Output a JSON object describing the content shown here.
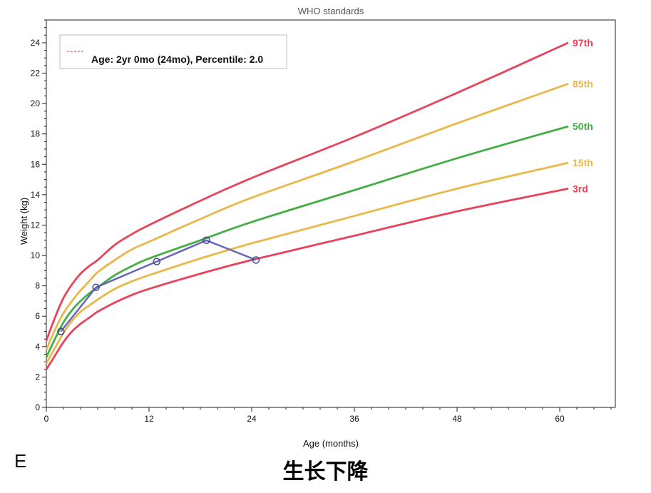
{
  "panel_letter": "E",
  "caption": "生长下降",
  "chart_data": {
    "type": "line",
    "title": "WHO standards",
    "xlabel": "Age (months)",
    "ylabel": "Weight (kg)",
    "xlim": [
      0,
      66.5
    ],
    "ylim": [
      0,
      25.5
    ],
    "x_ticks": [
      0,
      12,
      24,
      36,
      48,
      60
    ],
    "y_ticks": [
      0,
      2,
      4,
      6,
      8,
      10,
      12,
      14,
      16,
      18,
      20,
      22,
      24
    ],
    "x_minor_step": 2,
    "y_minor_step": 0.5,
    "legend": {
      "position": "top-left",
      "text": "Age: 2yr 0mo (24mo), Percentile: 2.0",
      "color": "#e03050"
    },
    "crosshair": {
      "x": 24.5,
      "y": 9.7,
      "color": "#e03050"
    },
    "series": [
      {
        "name": "97th",
        "color": "#e8435a",
        "x": [
          0,
          1,
          2,
          3,
          4,
          5,
          6,
          8,
          10,
          12,
          18,
          24,
          36,
          48,
          61
        ],
        "y": [
          4.4,
          5.9,
          7.2,
          8.1,
          8.8,
          9.3,
          9.7,
          10.7,
          11.4,
          12.0,
          13.6,
          15.1,
          17.8,
          20.7,
          24.0
        ]
      },
      {
        "name": "85th",
        "color": "#e8b84a",
        "x": [
          0,
          1,
          2,
          3,
          4,
          5,
          6,
          8,
          10,
          12,
          18,
          24,
          36,
          48,
          61
        ],
        "y": [
          3.8,
          5.1,
          6.2,
          7.0,
          7.7,
          8.3,
          8.9,
          9.7,
          10.4,
          10.9,
          12.4,
          13.8,
          16.2,
          18.7,
          21.3
        ]
      },
      {
        "name": "50th",
        "color": "#44ad44",
        "x": [
          0,
          1,
          2,
          3,
          4,
          5,
          6,
          8,
          10,
          12,
          18,
          24,
          36,
          48,
          61
        ],
        "y": [
          3.3,
          4.5,
          5.6,
          6.4,
          7.0,
          7.5,
          7.9,
          8.7,
          9.3,
          9.8,
          11.0,
          12.2,
          14.3,
          16.4,
          18.5
        ]
      },
      {
        "name": "15th",
        "color": "#e8b84a",
        "x": [
          0,
          1,
          2,
          3,
          4,
          5,
          6,
          8,
          10,
          12,
          18,
          24,
          36,
          48,
          61
        ],
        "y": [
          2.9,
          3.9,
          4.9,
          5.7,
          6.3,
          6.7,
          7.1,
          7.8,
          8.3,
          8.7,
          9.8,
          10.8,
          12.6,
          14.4,
          16.1
        ]
      },
      {
        "name": "3rd",
        "color": "#e8435a",
        "x": [
          0,
          1,
          2,
          3,
          4,
          5,
          6,
          8,
          10,
          12,
          18,
          24,
          36,
          48,
          61
        ],
        "y": [
          2.5,
          3.4,
          4.3,
          5.0,
          5.5,
          5.9,
          6.3,
          6.9,
          7.4,
          7.8,
          8.8,
          9.7,
          11.3,
          12.9,
          14.4
        ]
      },
      {
        "name": "",
        "color": "#6666bb",
        "x": [
          1.7,
          5.8,
          12.9,
          18.7,
          24.5
        ],
        "y": [
          5.0,
          7.9,
          9.6,
          11.0,
          9.7
        ],
        "markers": true
      }
    ],
    "reference_lines": {
      "vertical": [
        1.7,
        5.8,
        12.9,
        18.7
      ],
      "horizontal": [
        5.0,
        7.9,
        11.0
      ]
    }
  }
}
